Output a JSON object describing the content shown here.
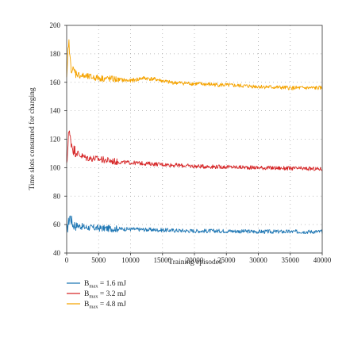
{
  "chart_data": {
    "type": "line",
    "title": "",
    "xlabel": "Training episodes",
    "ylabel": "Time slots consumed for charging",
    "xlim": [
      0,
      40000
    ],
    "ylim": [
      40,
      200
    ],
    "xticks": [
      0,
      5000,
      10000,
      15000,
      20000,
      25000,
      30000,
      35000,
      40000
    ],
    "yticks": [
      40,
      60,
      80,
      100,
      120,
      140,
      160,
      180,
      200
    ],
    "grid": "dotted",
    "legend_position": "below",
    "series": [
      {
        "name": "B_max = 1.6 mJ",
        "legend": {
          "prefix": "B",
          "subscript": "max",
          "suffix": " = 1.6 mJ"
        },
        "color": "#1f77b4",
        "x": [
          0,
          500,
          1000,
          2000,
          3000,
          5000,
          8000,
          12000,
          16000,
          20000,
          25000,
          30000,
          35000,
          40000
        ],
        "y": [
          55,
          66,
          60,
          59,
          58,
          57.5,
          57,
          56.5,
          56,
          55.5,
          55.5,
          55,
          55,
          55
        ]
      },
      {
        "name": "B_max = 3.2 mJ",
        "legend": {
          "prefix": "B",
          "subscript": "max",
          "suffix": " = 3.2 mJ"
        },
        "color": "#d62728",
        "x": [
          0,
          300,
          600,
          1000,
          2000,
          3000,
          5000,
          8000,
          12000,
          16000,
          20000,
          25000,
          30000,
          35000,
          40000
        ],
        "y": [
          100,
          126,
          120,
          113,
          109,
          107,
          106,
          104,
          103,
          102,
          101,
          100.5,
          100,
          99.5,
          99
        ]
      },
      {
        "name": "B_max = 4.8 mJ",
        "legend": {
          "prefix": "B",
          "subscript": "max",
          "suffix": " = 4.8 mJ"
        },
        "color": "#f5a300",
        "x": [
          0,
          300,
          600,
          1000,
          2000,
          3000,
          5000,
          8000,
          10000,
          12000,
          14000,
          16000,
          20000,
          25000,
          30000,
          35000,
          40000
        ],
        "y": [
          160,
          190,
          172,
          168,
          165,
          164,
          163,
          162,
          161,
          163,
          162,
          160,
          159,
          158,
          157,
          156,
          156
        ]
      }
    ]
  }
}
